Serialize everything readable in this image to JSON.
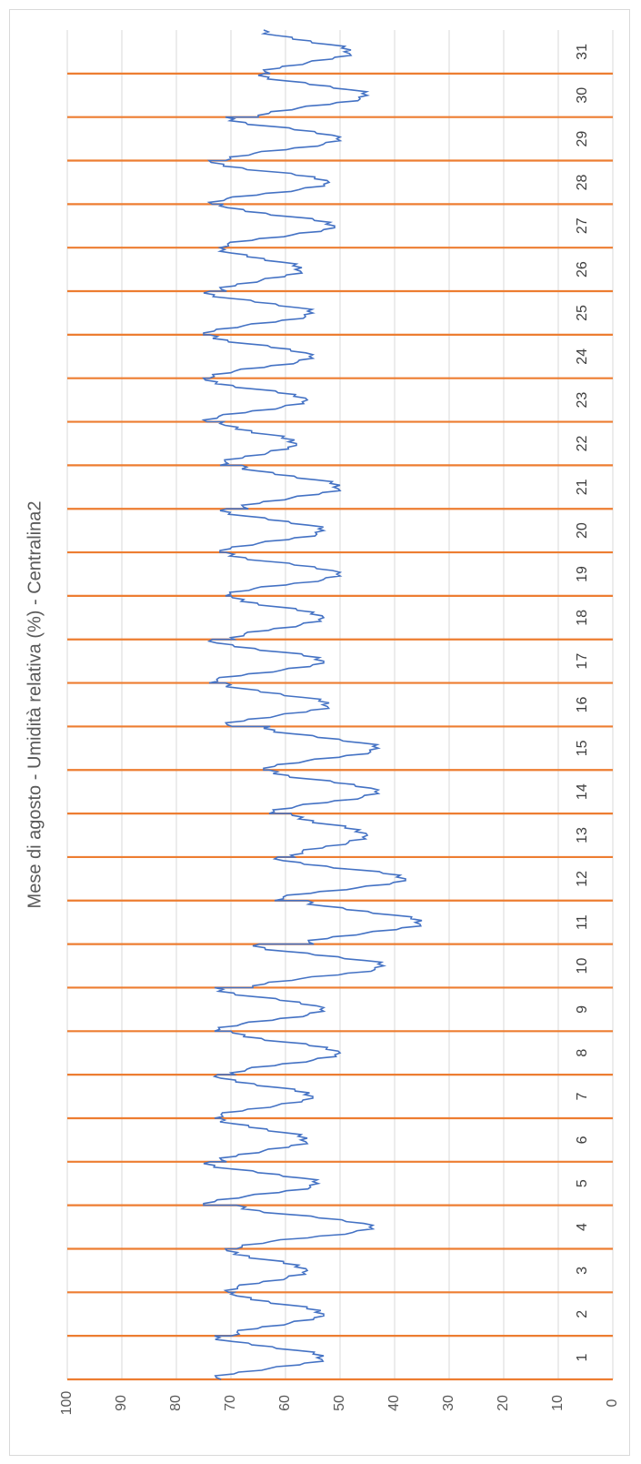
{
  "chart_data": {
    "type": "line",
    "title": "Mese di agosto - Umidità relativa (%) - Centralina2",
    "xlabel": "",
    "ylabel": "",
    "ylim": [
      0,
      100
    ],
    "y_ticks": [
      "100",
      "90",
      "80",
      "70",
      "60",
      "50",
      "40",
      "30",
      "20",
      "10",
      "0"
    ],
    "categories": [
      "1",
      "2",
      "3",
      "4",
      "5",
      "6",
      "7",
      "8",
      "9",
      "10",
      "11",
      "12",
      "13",
      "14",
      "15",
      "16",
      "17",
      "18",
      "19",
      "20",
      "21",
      "22",
      "23",
      "24",
      "25",
      "26",
      "27",
      "28",
      "29",
      "30",
      "31"
    ],
    "orientation": "rotated-90",
    "grid": true,
    "day_separator_color": "#ed7d31",
    "series_color": "#4472c4",
    "series": [
      {
        "values_by_day": [
          {
            "day": 1,
            "min": 53,
            "max": 73
          },
          {
            "day": 2,
            "min": 53,
            "max": 70
          },
          {
            "day": 3,
            "min": 56,
            "max": 71
          },
          {
            "day": 4,
            "min": 44,
            "max": 69
          },
          {
            "day": 5,
            "min": 54,
            "max": 75
          },
          {
            "day": 6,
            "min": 56,
            "max": 72
          },
          {
            "day": 7,
            "min": 55,
            "max": 73
          },
          {
            "day": 8,
            "min": 50,
            "max": 70
          },
          {
            "day": 9,
            "min": 53,
            "max": 73
          },
          {
            "day": 10,
            "min": 42,
            "max": 66
          },
          {
            "day": 11,
            "min": 35,
            "max": 56
          },
          {
            "day": 12,
            "min": 38,
            "max": 62
          },
          {
            "day": 13,
            "min": 45,
            "max": 59
          },
          {
            "day": 14,
            "min": 43,
            "max": 63
          },
          {
            "day": 15,
            "min": 43,
            "max": 64
          },
          {
            "day": 16,
            "min": 52,
            "max": 71
          },
          {
            "day": 17,
            "min": 53,
            "max": 74
          },
          {
            "day": 18,
            "min": 53,
            "max": 70
          },
          {
            "day": 19,
            "min": 50,
            "max": 71
          },
          {
            "day": 20,
            "min": 53,
            "max": 72
          },
          {
            "day": 21,
            "min": 50,
            "max": 68
          },
          {
            "day": 22,
            "min": 58,
            "max": 72
          },
          {
            "day": 23,
            "min": 56,
            "max": 75
          },
          {
            "day": 24,
            "min": 55,
            "max": 74
          },
          {
            "day": 25,
            "min": 55,
            "max": 75
          },
          {
            "day": 26,
            "min": 57,
            "max": 72
          },
          {
            "day": 27,
            "min": 51,
            "max": 72
          },
          {
            "day": 28,
            "min": 52,
            "max": 74
          },
          {
            "day": 29,
            "min": 50,
            "max": 71
          },
          {
            "day": 30,
            "min": 45,
            "max": 65
          },
          {
            "day": 31,
            "min": 48,
            "max": 64
          }
        ]
      }
    ]
  }
}
